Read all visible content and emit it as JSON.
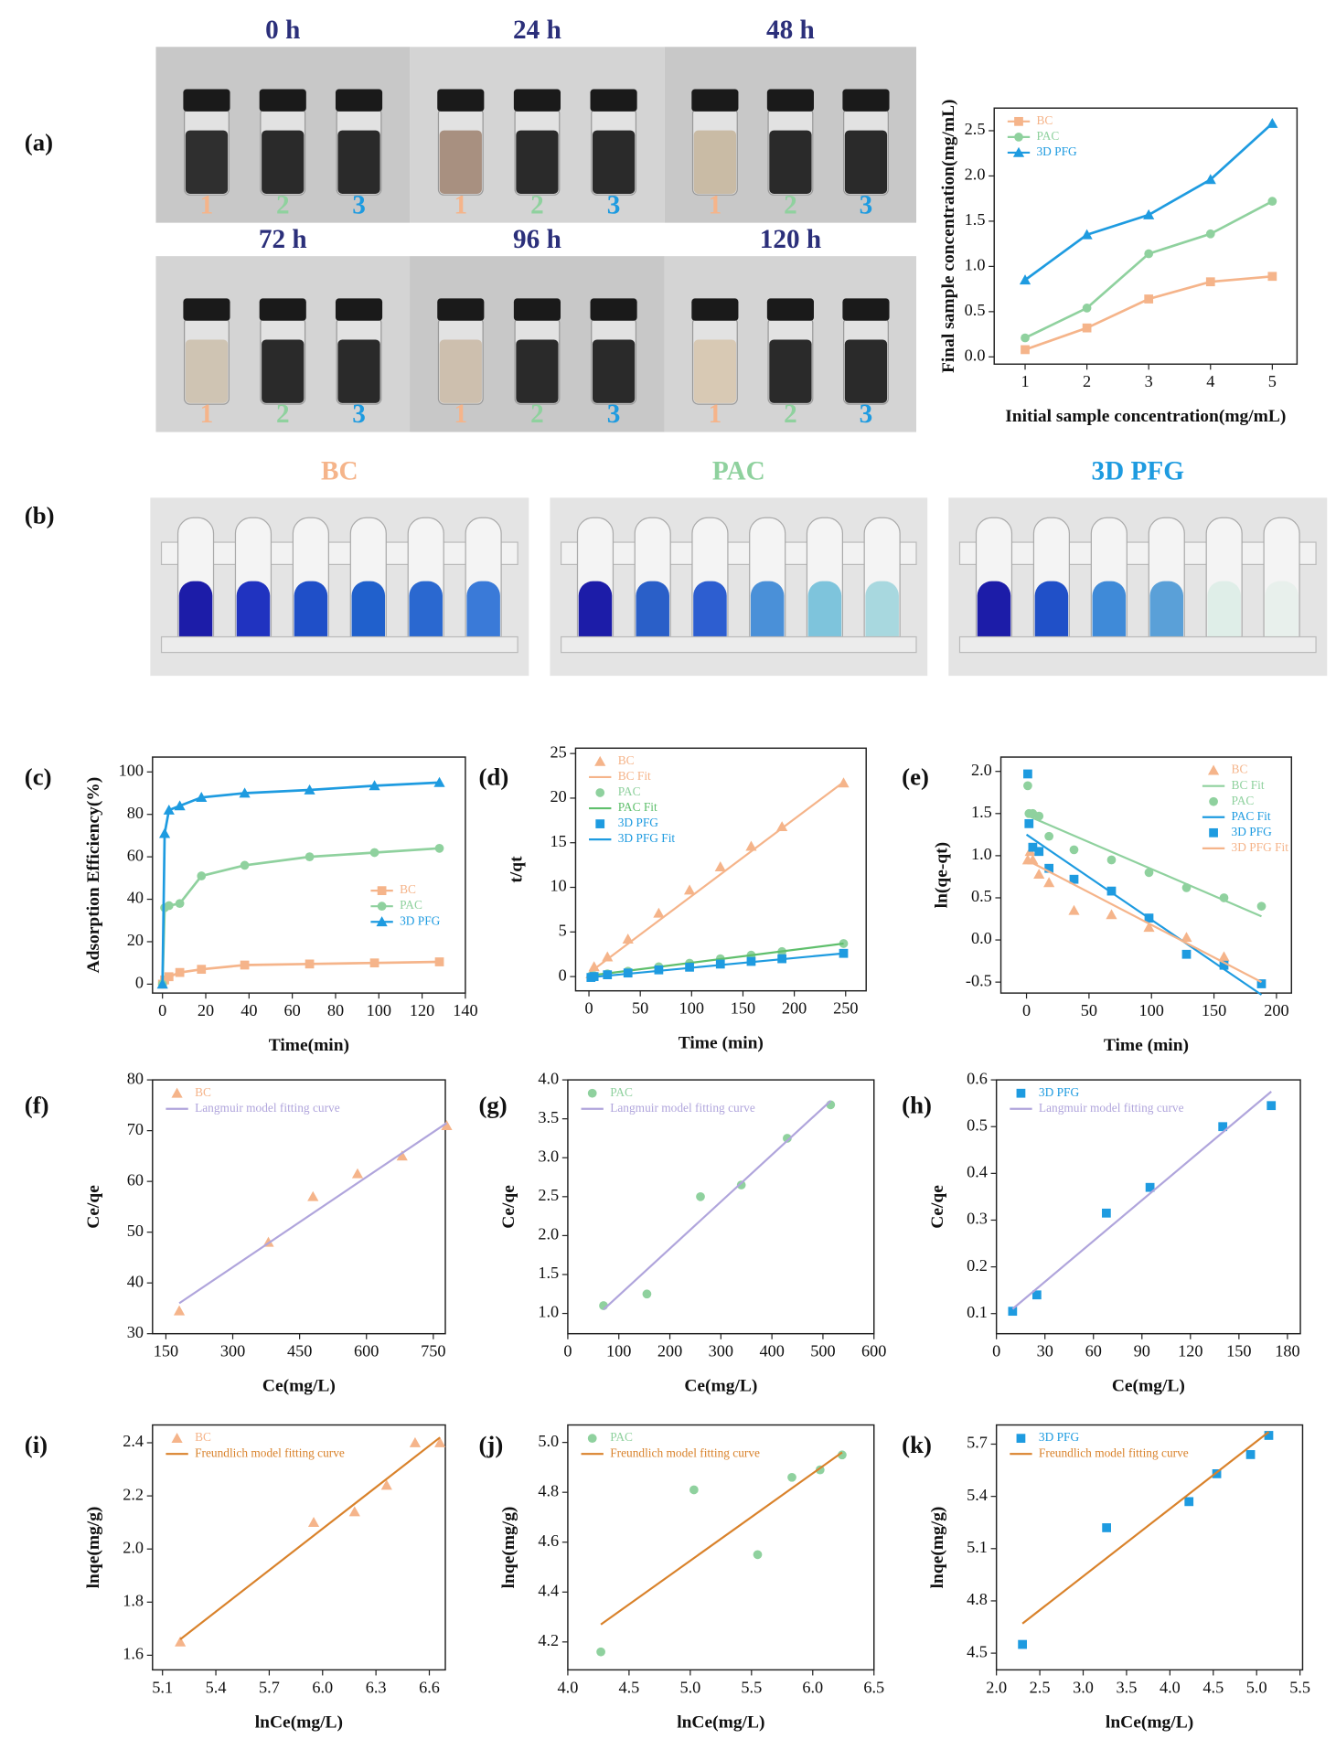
{
  "panel_labels": [
    "(a)",
    "(b)",
    "(c)",
    "(d)",
    "(e)",
    "(f)",
    "(g)",
    "(h)",
    "(i)",
    "(j)",
    "(k)"
  ],
  "photos_a": [
    {
      "caption": "0 h",
      "labels": [
        "1",
        "2",
        "3"
      ]
    },
    {
      "caption": "24 h",
      "labels": [
        "1",
        "2",
        "3"
      ]
    },
    {
      "caption": "48 h",
      "labels": [
        "1",
        "2",
        "3"
      ]
    },
    {
      "caption": "72 h",
      "labels": [
        "1",
        "2",
        "3"
      ]
    },
    {
      "caption": "96 h",
      "labels": [
        "1",
        "2",
        "3"
      ]
    },
    {
      "caption": "120 h",
      "labels": [
        "1",
        "2",
        "3"
      ]
    }
  ],
  "photos_b": [
    {
      "title": "BC"
    },
    {
      "title": "PAC"
    },
    {
      "title": "3D PFG"
    }
  ],
  "chart_data": [
    {
      "type": "line",
      "xlabel": "Initial sample concentration(mg/mL)",
      "ylabel": "Final sample concentration(mg/mL)",
      "legend": "upper left",
      "x": [
        1,
        2,
        3,
        4,
        5
      ],
      "xlim": [
        0.5,
        5.4
      ],
      "xticks": [
        1,
        2,
        3,
        4,
        5
      ],
      "ylim": [
        -0.08,
        2.75
      ],
      "yticks": [
        {
          "value": 0,
          "label": "0.0"
        },
        0.5,
        {
          "value": 1,
          "label": "1.0"
        },
        1.5,
        {
          "value": 2,
          "label": "2.0"
        },
        2.5
      ],
      "series": [
        {
          "name": "BC",
          "color": "#f5b48a",
          "marker": "square",
          "mode": "line+markers",
          "values": [
            0.08,
            0.32,
            0.64,
            0.83,
            0.89
          ]
        },
        {
          "name": "PAC",
          "color": "#8fd19e",
          "marker": "circle",
          "mode": "line+markers",
          "values": [
            0.21,
            0.54,
            1.14,
            1.36,
            1.72
          ]
        },
        {
          "name": "3D PFG",
          "color": "#1e9be0",
          "marker": "triangle",
          "mode": "line+markers",
          "values": [
            0.85,
            1.35,
            1.57,
            1.96,
            2.58
          ]
        }
      ]
    },
    {
      "type": "line",
      "xlabel": "Time(min)",
      "ylabel": "Adsorption Efficiency(%)",
      "legend": "lower right",
      "x": [
        0,
        1,
        3,
        8,
        18,
        38,
        68,
        98,
        128
      ],
      "xlim": [
        -4.6,
        140
      ],
      "xticks": [
        0,
        20,
        40,
        60,
        80,
        100,
        120,
        140
      ],
      "ylim": [
        -4.2,
        107
      ],
      "yticks": [
        0,
        20,
        40,
        60,
        80,
        100
      ],
      "series": [
        {
          "name": "BC",
          "color": "#f5b48a",
          "marker": "square",
          "mode": "line+markers",
          "values": [
            0,
            2,
            3.5,
            5.5,
            7,
            9,
            9.5,
            10,
            10.5
          ]
        },
        {
          "name": "PAC",
          "color": "#8fd19e",
          "marker": "circle",
          "mode": "line+markers",
          "values": [
            0,
            36,
            37,
            38,
            51,
            56,
            60,
            62,
            64
          ]
        },
        {
          "name": "3D PFG",
          "color": "#1e9be0",
          "marker": "triangle",
          "mode": "line+markers",
          "values": [
            0,
            71,
            82,
            84,
            88,
            90,
            91.5,
            93.5,
            95
          ]
        }
      ]
    },
    {
      "type": "scatter",
      "xlabel": "Time (min)",
      "ylabel": "t/qt",
      "legend": "upper left",
      "xlim": [
        -13,
        270
      ],
      "xticks": [
        0,
        50,
        100,
        150,
        200,
        250
      ],
      "ylim": [
        -1.6,
        25.6
      ],
      "yticks": [
        0,
        5,
        10,
        15,
        20,
        25
      ],
      "series": [
        {
          "name": "BC",
          "color": "#f5b48a",
          "marker": "triangle",
          "mode": "markers",
          "x": [
            2,
            5,
            18,
            38,
            68,
            98,
            128,
            158,
            188,
            248
          ],
          "values": [
            0.3,
            1.1,
            2.2,
            4.2,
            7.1,
            9.7,
            12.3,
            14.6,
            16.8,
            21.7
          ]
        },
        {
          "name": "BC Fit",
          "color": "#f5b48a",
          "mode": "line",
          "x": [
            0,
            248
          ],
          "values": [
            0.4,
            21.8
          ]
        },
        {
          "name": "PAC",
          "color": "#8fd19e",
          "marker": "circle",
          "mode": "markers",
          "x": [
            2,
            5,
            18,
            38,
            68,
            98,
            128,
            158,
            188,
            248
          ],
          "values": [
            0.05,
            0.1,
            0.3,
            0.6,
            1.1,
            1.5,
            2,
            2.4,
            2.8,
            3.7
          ]
        },
        {
          "name": "PAC Fit",
          "color": "#5fbf6c",
          "mode": "line",
          "x": [
            0,
            248
          ],
          "values": [
            0.1,
            3.7
          ]
        },
        {
          "name": "3D PFG",
          "color": "#1e9be0",
          "marker": "square",
          "mode": "markers",
          "x": [
            2,
            5,
            18,
            38,
            68,
            98,
            128,
            158,
            188,
            248
          ],
          "values": [
            -0.1,
            0,
            0.2,
            0.4,
            0.75,
            1.05,
            1.4,
            1.7,
            2,
            2.6
          ]
        },
        {
          "name": "3D PFG Fit",
          "color": "#1e9be0",
          "mode": "line",
          "x": [
            0,
            248
          ],
          "values": [
            -0.1,
            2.6
          ]
        }
      ]
    },
    {
      "type": "scatter",
      "xlabel": "Time (min)",
      "ylabel": "ln(qe-qt)",
      "legend": "upper right",
      "xlim": [
        -20.5,
        212
      ],
      "xticks": [
        0,
        50,
        100,
        150,
        200
      ],
      "ylim": [
        -0.63,
        2.17
      ],
      "yticks": [
        -0.5,
        {
          "value": 0,
          "label": "0.0"
        },
        0.5,
        {
          "value": 1,
          "label": "1.0"
        },
        1.5,
        {
          "value": 2,
          "label": "2.0"
        }
      ],
      "series": [
        {
          "name": "BC",
          "color": "#f5b48a",
          "marker": "triangle",
          "mode": "markers",
          "x": [
            1,
            3,
            5,
            10,
            18,
            38,
            68,
            98,
            128,
            158
          ],
          "values": [
            0.95,
            1.05,
            0.95,
            0.78,
            0.68,
            0.35,
            0.3,
            0.15,
            0.03,
            -0.2
          ]
        },
        {
          "name": "BC Fit",
          "color": "#8fd19e",
          "mode": "line",
          "x": [
            0,
            188
          ],
          "values": [
            1.48,
            0.28
          ]
        },
        {
          "name": "PAC",
          "color": "#8fd19e",
          "marker": "circle",
          "mode": "markers",
          "x": [
            1,
            2,
            5,
            10,
            18,
            38,
            68,
            98,
            128,
            158,
            188
          ],
          "values": [
            1.83,
            1.5,
            1.5,
            1.47,
            1.23,
            1.07,
            0.95,
            0.8,
            0.62,
            0.5,
            0.4
          ]
        },
        {
          "name": "PAC Fit",
          "color": "#1e9be0",
          "mode": "line",
          "x": [
            0,
            188
          ],
          "values": [
            1.25,
            -0.65
          ]
        },
        {
          "name": "3D PFG",
          "color": "#1e9be0",
          "marker": "square",
          "mode": "markers",
          "x": [
            1,
            2,
            5,
            10,
            18,
            38,
            68,
            98,
            128,
            158,
            188
          ],
          "values": [
            1.97,
            1.38,
            1.1,
            1.05,
            0.85,
            0.72,
            0.58,
            0.26,
            -0.17,
            -0.3,
            -0.52
          ]
        },
        {
          "name": "3D PFG Fit",
          "color": "#f5b48a",
          "mode": "line",
          "x": [
            0,
            188
          ],
          "values": [
            0.95,
            -0.5
          ]
        }
      ]
    },
    {
      "type": "scatter",
      "xlabel": "Ce(mg/L)",
      "ylabel": "Ce/qe",
      "legend": "upper left",
      "xlim": [
        120,
        777
      ],
      "xticks": [
        150,
        300,
        450,
        600,
        750
      ],
      "ylim": [
        30,
        80
      ],
      "yticks": [
        30,
        40,
        50,
        60,
        70,
        80
      ],
      "series": [
        {
          "name": "BC",
          "color": "#f5b48a",
          "marker": "triangle",
          "mode": "markers",
          "x": [
            180,
            380,
            480,
            580,
            680,
            780
          ],
          "values": [
            34.5,
            48,
            57,
            61.5,
            65,
            71
          ]
        },
        {
          "name": "Langmuir model fitting curve",
          "color": "#b0a5dc",
          "mode": "line",
          "x": [
            180,
            780
          ],
          "values": [
            36,
            71.5
          ]
        }
      ]
    },
    {
      "type": "scatter",
      "xlabel": "Ce(mg/L)",
      "ylabel": "Ce/qe",
      "legend": "upper left",
      "xlim": [
        0,
        600
      ],
      "xticks": [
        0,
        100,
        200,
        300,
        400,
        500,
        600
      ],
      "ylim": [
        0.74,
        4.0
      ],
      "yticks": [
        {
          "value": 1,
          "label": "1.0"
        },
        1.5,
        {
          "value": 2,
          "label": "2.0"
        },
        2.5,
        {
          "value": 3,
          "label": "3.0"
        },
        3.5,
        {
          "value": 4,
          "label": "4.0"
        }
      ],
      "series": [
        {
          "name": "PAC",
          "color": "#8fd19e",
          "marker": "circle",
          "mode": "markers",
          "x": [
            70,
            155,
            260,
            340,
            430,
            515
          ],
          "values": [
            1.1,
            1.25,
            2.5,
            2.65,
            3.25,
            3.68
          ]
        },
        {
          "name": "Langmuir model fitting curve",
          "color": "#b0a5dc",
          "mode": "line",
          "x": [
            70,
            515
          ],
          "values": [
            1.05,
            3.73
          ]
        }
      ]
    },
    {
      "type": "scatter",
      "xlabel": "Ce(mg/L)",
      "ylabel": "Ce/qe",
      "legend": "upper left",
      "xlim": [
        0,
        188
      ],
      "xticks": [
        0,
        30,
        60,
        90,
        120,
        150,
        180
      ],
      "ylim": [
        0.057,
        0.6
      ],
      "yticks": [
        0.1,
        0.2,
        0.3,
        0.4,
        0.5,
        0.6
      ],
      "series": [
        {
          "name": "3D PFG",
          "color": "#1e9be0",
          "marker": "square",
          "mode": "markers",
          "x": [
            10,
            25,
            68,
            95,
            140,
            170
          ],
          "values": [
            0.105,
            0.14,
            0.315,
            0.37,
            0.5,
            0.545
          ]
        },
        {
          "name": "Langmuir model fitting curve",
          "color": "#b0a5dc",
          "mode": "line",
          "x": [
            10,
            170
          ],
          "values": [
            0.11,
            0.575
          ]
        }
      ]
    },
    {
      "type": "scatter",
      "xlabel": "lnCe(mg/L)",
      "ylabel": "lnqe(mg/g)",
      "legend": "upper left",
      "xlim": [
        5.044,
        6.69
      ],
      "xticks": [
        5.1,
        5.4,
        5.7,
        {
          "value": 6,
          "label": "6.0"
        },
        6.3,
        6.6
      ],
      "ylim": [
        1.545,
        2.467
      ],
      "yticks": [
        1.6,
        1.8,
        {
          "value": 2,
          "label": "2.0"
        },
        2.2,
        2.4
      ],
      "series": [
        {
          "name": "BC",
          "color": "#f5b48a",
          "marker": "triangle",
          "mode": "markers",
          "x": [
            5.2,
            5.95,
            6.18,
            6.36,
            6.52,
            6.66
          ],
          "values": [
            1.65,
            2.1,
            2.14,
            2.24,
            2.4,
            2.4
          ]
        },
        {
          "name": "Freundlich model fitting curve",
          "color": "#d9822b",
          "mode": "line",
          "x": [
            5.2,
            6.66
          ],
          "values": [
            1.66,
            2.42
          ]
        }
      ]
    },
    {
      "type": "scatter",
      "xlabel": "lnCe(mg/L)",
      "ylabel": "lnqe(mg/g)",
      "legend": "upper left",
      "xlim": [
        4.0,
        6.5
      ],
      "xticks": [
        {
          "value": 4,
          "label": "4.0"
        },
        4.5,
        {
          "value": 5,
          "label": "5.0"
        },
        5.5,
        {
          "value": 6,
          "label": "6.0"
        },
        6.5
      ],
      "ylim": [
        4.088,
        5.07
      ],
      "yticks": [
        4.2,
        4.4,
        4.6,
        4.8,
        {
          "value": 5,
          "label": "5.0"
        }
      ],
      "series": [
        {
          "name": "PAC",
          "color": "#8fd19e",
          "marker": "circle",
          "mode": "markers",
          "x": [
            4.27,
            5.03,
            5.55,
            5.83,
            6.06,
            6.24
          ],
          "values": [
            4.16,
            4.81,
            4.55,
            4.86,
            4.89,
            4.95
          ]
        },
        {
          "name": "Freundlich model fitting curve",
          "color": "#d9822b",
          "mode": "line",
          "x": [
            4.27,
            6.24
          ],
          "values": [
            4.27,
            4.96
          ]
        }
      ]
    },
    {
      "type": "scatter",
      "xlabel": "lnCe(mg/L)",
      "ylabel": "lnqe(mg/g)",
      "legend": "upper left",
      "xlim": [
        2.0,
        5.53
      ],
      "xticks": [
        {
          "value": 2,
          "label": "2.0"
        },
        2.5,
        {
          "value": 3,
          "label": "3.0"
        },
        3.5,
        {
          "value": 4,
          "label": "4.0"
        },
        4.5,
        {
          "value": 5,
          "label": "5.0"
        },
        5.5
      ],
      "ylim": [
        4.404,
        5.81
      ],
      "yticks": [
        4.5,
        4.8,
        5.1,
        5.4,
        5.7
      ],
      "series": [
        {
          "name": "3D PFG",
          "color": "#1e9be0",
          "marker": "square",
          "mode": "markers",
          "x": [
            2.3,
            3.27,
            4.22,
            4.54,
            4.93,
            5.14
          ],
          "values": [
            4.55,
            5.22,
            5.37,
            5.53,
            5.64,
            5.75
          ]
        },
        {
          "name": "Freundlich model fitting curve",
          "color": "#d9822b",
          "mode": "line",
          "x": [
            2.3,
            5.14
          ],
          "values": [
            4.67,
            5.77
          ]
        }
      ]
    }
  ]
}
